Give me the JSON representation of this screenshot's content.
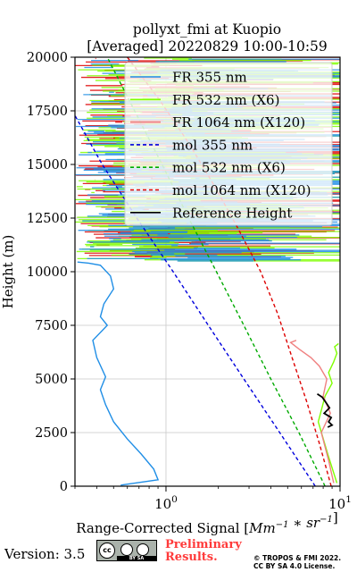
{
  "chart_data": {
    "type": "line",
    "title": "pollyxt_fmi at Kuopio",
    "subtitle": "[Averaged] 20220829 10:00-10:59",
    "xlabel": "Range-Corrected Signal [Mm^-1 * sr^-1]",
    "ylabel": "Height (m)",
    "xscale": "log",
    "xlim": [
      0.3,
      10
    ],
    "ylim": [
      0,
      20000
    ],
    "yticks": [
      0,
      2500,
      5000,
      7500,
      10000,
      12500,
      15000,
      17500,
      20000
    ],
    "xtick_labels": [
      {
        "value": 1,
        "label": "10^0"
      },
      {
        "value": 10,
        "label": "10^1"
      }
    ],
    "grid": true,
    "legend_position": "top-right",
    "series": [
      {
        "name": "FR 355 nm",
        "color": "#1f8ee6",
        "style": "solid",
        "x": [
          0.55,
          0.9,
          0.85,
          0.72,
          0.6,
          0.5,
          0.45,
          0.42,
          0.45,
          0.4,
          0.38,
          0.46,
          0.42,
          0.44,
          0.5,
          0.48,
          0.42,
          0.36,
          0.31
        ],
        "y": [
          50,
          300,
          800,
          1500,
          2200,
          3000,
          3800,
          4500,
          5100,
          6000,
          6800,
          7500,
          7900,
          8500,
          9200,
          9800,
          10300,
          10400,
          10450
        ]
      },
      {
        "name": "FR 532 nm (X6)",
        "color": "#7fff00",
        "style": "solid",
        "x": [
          9.6,
          8.5,
          7.5,
          8.2,
          9.0,
          8.6,
          9.2,
          9.6,
          9.3,
          9.8
        ],
        "y": [
          150,
          1500,
          3000,
          4200,
          4800,
          5300,
          5800,
          6200,
          6500,
          6650
        ]
      },
      {
        "name": "FR 1064 nm (X120)",
        "color": "#f08080",
        "style": "solid",
        "x": [
          9.2,
          8.6,
          7.8,
          8.8,
          8.0,
          8.4,
          7.6,
          6.8,
          5.8,
          5.2,
          5.6
        ],
        "y": [
          150,
          1200,
          2500,
          3400,
          4200,
          5000,
          5600,
          6000,
          6400,
          6700,
          6800
        ]
      },
      {
        "name": "mol 355 nm",
        "color": "#0000dd",
        "style": "dashed",
        "x": [
          7.2,
          4.5,
          2.8,
          1.75,
          1.1,
          0.68,
          0.43,
          0.29
        ],
        "y": [
          0,
          2500,
          5000,
          7500,
          10000,
          12500,
          15000,
          17500
        ]
      },
      {
        "name": "mol 532 nm (X6)",
        "color": "#00aa00",
        "style": "dashed",
        "x": [
          8.2,
          5.8,
          4.0,
          2.8,
          1.95,
          1.35,
          0.95,
          0.66,
          0.46
        ],
        "y": [
          0,
          2500,
          5000,
          7500,
          10000,
          12500,
          15000,
          17500,
          20000
        ]
      },
      {
        "name": "mol 1064 nm (X120)",
        "color": "#dd0000",
        "style": "dashed",
        "x": [
          8.9,
          7.6,
          6.4,
          5.3,
          4.4,
          3.5,
          2.6,
          1.9,
          1.35,
          0.92,
          0.6
        ],
        "y": [
          0,
          2000,
          4000,
          6000,
          8000,
          10000,
          12000,
          14000,
          16000,
          18000,
          20000
        ]
      },
      {
        "name": "Reference Height",
        "color": "#000000",
        "style": "solid",
        "x": [
          7.4,
          7.9,
          8.3,
          8.7,
          8.1,
          8.9,
          8.6,
          9.0,
          8.5
        ],
        "y": [
          4300,
          4150,
          3900,
          3650,
          3400,
          3200,
          3000,
          2850,
          2750
        ]
      }
    ]
  },
  "footer": {
    "version": "Version: 3.5",
    "license_badge": "BY SA",
    "license_badge_cc": "cc",
    "preliminary_line1": "Preliminary",
    "preliminary_line2": "Results.",
    "copyright_line1": "© TROPOS & FMI 2022.",
    "copyright_line2": "CC BY SA 4.0 License."
  }
}
